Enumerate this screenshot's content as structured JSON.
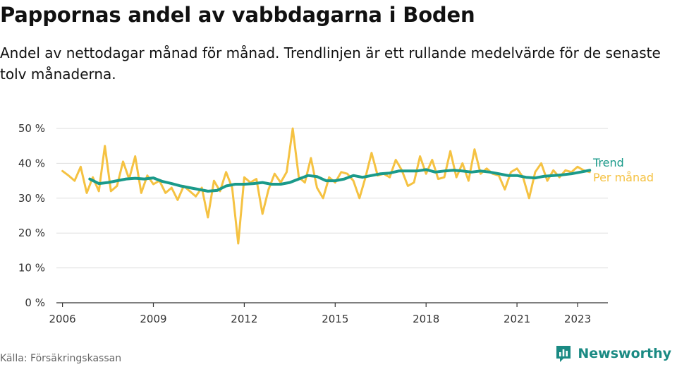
{
  "header": {
    "title": "Pappornas andel av vabbdagarna i Boden",
    "subtitle": "Andel av nettodagar månad för månad. Trendlinjen är ett rullande medelvärde för de senaste tolv månaderna."
  },
  "footer": {
    "source": "Källa: Försäkringskassan",
    "brand": "Newsworthy",
    "brand_icon": "bar-chart-speech-icon",
    "brand_color": "#1a8a83"
  },
  "chart_data": {
    "type": "line",
    "xlim": [
      2005.8,
      2024.0
    ],
    "ylim": [
      0,
      50
    ],
    "x_ticks": [
      {
        "value": 2006,
        "label": "2006"
      },
      {
        "value": 2009,
        "label": "2009"
      },
      {
        "value": 2012,
        "label": "2012"
      },
      {
        "value": 2015,
        "label": "2015"
      },
      {
        "value": 2018,
        "label": "2018"
      },
      {
        "value": 2021,
        "label": "2021"
      },
      {
        "value": 2023,
        "label": "2023"
      }
    ],
    "y_ticks": [
      {
        "value": 0,
        "label": "0 %"
      },
      {
        "value": 10,
        "label": "10 %"
      },
      {
        "value": 20,
        "label": "20 %"
      },
      {
        "value": 30,
        "label": "30 %"
      },
      {
        "value": 40,
        "label": "40 %"
      },
      {
        "value": 50,
        "label": "50 %"
      }
    ],
    "grid": true,
    "legend_placement": "right, at line ends",
    "series": [
      {
        "name": "Per månad",
        "color": "#f5c242",
        "x": [
          2006.0,
          2006.2,
          2006.4,
          2006.6,
          2006.8,
          2007.0,
          2007.2,
          2007.4,
          2007.6,
          2007.8,
          2008.0,
          2008.2,
          2008.4,
          2008.6,
          2008.8,
          2009.0,
          2009.2,
          2009.4,
          2009.6,
          2009.8,
          2010.0,
          2010.2,
          2010.4,
          2010.6,
          2010.8,
          2011.0,
          2011.2,
          2011.4,
          2011.6,
          2011.8,
          2012.0,
          2012.2,
          2012.4,
          2012.6,
          2012.8,
          2013.0,
          2013.2,
          2013.4,
          2013.6,
          2013.8,
          2014.0,
          2014.2,
          2014.4,
          2014.6,
          2014.8,
          2015.0,
          2015.2,
          2015.4,
          2015.6,
          2015.8,
          2016.0,
          2016.2,
          2016.4,
          2016.6,
          2016.8,
          2017.0,
          2017.2,
          2017.4,
          2017.6,
          2017.8,
          2018.0,
          2018.2,
          2018.4,
          2018.6,
          2018.8,
          2019.0,
          2019.2,
          2019.4,
          2019.6,
          2019.8,
          2020.0,
          2020.2,
          2020.4,
          2020.6,
          2020.8,
          2021.0,
          2021.2,
          2021.4,
          2021.6,
          2021.8,
          2022.0,
          2022.2,
          2022.4,
          2022.6,
          2022.8,
          2023.0,
          2023.2,
          2023.4
        ],
        "values": [
          37.8,
          36.5,
          35.0,
          39.0,
          31.5,
          36.0,
          32.0,
          45.0,
          32.0,
          33.5,
          40.5,
          35.5,
          42.0,
          31.5,
          36.5,
          34.0,
          35.0,
          31.5,
          33.0,
          29.5,
          33.5,
          32.0,
          30.5,
          33.0,
          24.5,
          35.0,
          32.0,
          37.5,
          33.0,
          17.0,
          36.0,
          34.5,
          35.5,
          25.5,
          32.5,
          37.0,
          34.5,
          37.5,
          50.0,
          36.0,
          34.5,
          41.5,
          33.0,
          30.0,
          36.0,
          34.5,
          37.5,
          37.0,
          35.0,
          30.0,
          36.0,
          43.0,
          36.5,
          37.0,
          36.0,
          41.0,
          38.0,
          33.5,
          34.5,
          42.0,
          37.0,
          41.0,
          35.5,
          36.0,
          43.5,
          36.0,
          40.0,
          35.0,
          44.0,
          37.0,
          38.5,
          37.0,
          36.5,
          32.5,
          37.5,
          38.5,
          36.0,
          30.0,
          37.5,
          40.0,
          35.0,
          38.0,
          36.0,
          38.0,
          37.5,
          39.0,
          38.0,
          37.5
        ]
      },
      {
        "name": "Trend",
        "color": "#1a9a8a",
        "x": [
          2006.9,
          2007.2,
          2007.5,
          2007.8,
          2008.1,
          2008.4,
          2008.7,
          2009.0,
          2009.3,
          2009.6,
          2009.9,
          2010.2,
          2010.5,
          2010.8,
          2011.1,
          2011.4,
          2011.7,
          2012.0,
          2012.3,
          2012.6,
          2012.9,
          2013.2,
          2013.5,
          2013.8,
          2014.1,
          2014.4,
          2014.7,
          2015.0,
          2015.3,
          2015.6,
          2015.9,
          2016.2,
          2016.5,
          2016.8,
          2017.1,
          2017.4,
          2017.7,
          2018.0,
          2018.3,
          2018.6,
          2018.9,
          2019.2,
          2019.5,
          2019.8,
          2020.1,
          2020.4,
          2020.7,
          2021.0,
          2021.3,
          2021.6,
          2021.9,
          2022.2,
          2022.5,
          2022.8,
          2023.1,
          2023.4
        ],
        "values": [
          35.5,
          34.2,
          34.5,
          35.0,
          35.5,
          35.7,
          35.5,
          35.8,
          34.8,
          34.2,
          33.5,
          33.0,
          32.5,
          32.0,
          32.2,
          33.5,
          34.0,
          34.0,
          34.2,
          34.5,
          34.0,
          34.0,
          34.5,
          35.5,
          36.5,
          36.2,
          35.0,
          35.0,
          35.5,
          36.5,
          36.0,
          36.5,
          37.0,
          37.2,
          37.8,
          37.8,
          37.8,
          38.2,
          37.5,
          37.8,
          38.0,
          37.8,
          37.5,
          37.8,
          37.5,
          37.0,
          36.5,
          36.5,
          36.0,
          35.8,
          36.3,
          36.5,
          36.7,
          37.0,
          37.5,
          38.0
        ]
      }
    ]
  }
}
